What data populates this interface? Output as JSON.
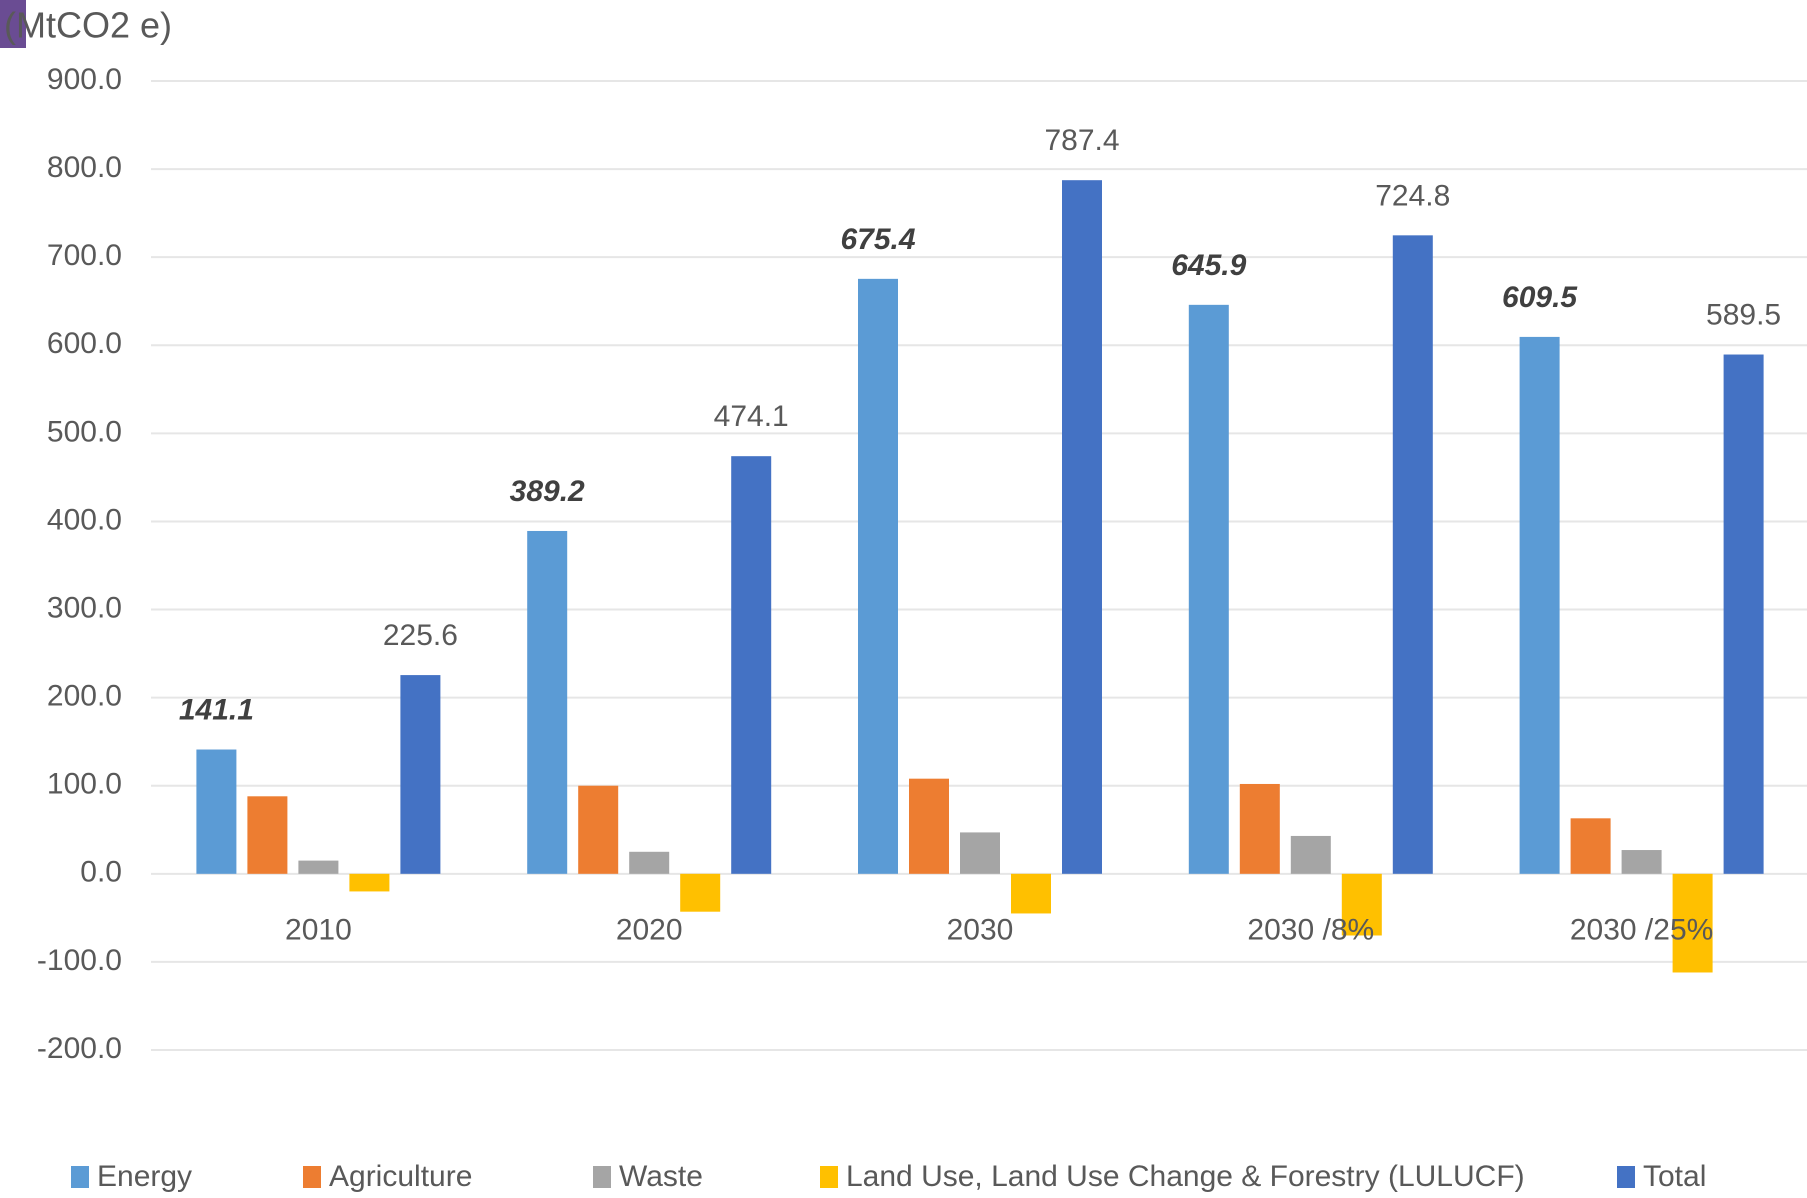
{
  "chart_data": {
    "type": "bar",
    "y_label": "(MtCO2 e)",
    "categories": [
      "2010",
      "2020",
      "2030",
      "2030 /8%",
      "2030 /25%"
    ],
    "series": [
      {
        "name": "Energy",
        "color": "#5b9bd5",
        "values": [
          141.1,
          389.2,
          675.4,
          645.9,
          609.5
        ],
        "data_labels": true,
        "label_style": "bold-italic"
      },
      {
        "name": "Agriculture",
        "color": "#ed7d31",
        "values": [
          88,
          100,
          108,
          102,
          63
        ]
      },
      {
        "name": "Waste",
        "color": "#a5a5a5",
        "values": [
          15,
          25,
          47,
          43,
          27
        ]
      },
      {
        "name": "Land Use, Land Use Change & Forestry (LULUCF)",
        "color": "#ffc000",
        "values": [
          -20,
          -43,
          -45,
          -70,
          -112
        ]
      },
      {
        "name": "Total",
        "color": "#4472c4",
        "values": [
          225.6,
          474.1,
          787.4,
          724.8,
          589.5
        ],
        "data_labels": true,
        "label_style": "normal"
      }
    ],
    "ylim": [
      -200,
      900
    ],
    "yticks": [
      {
        "value": -200,
        "label": "-200.0"
      },
      {
        "value": -100,
        "label": "-100.0"
      },
      {
        "value": 0,
        "label": "0.0"
      },
      {
        "value": 100,
        "label": "100.0"
      },
      {
        "value": 200,
        "label": "200.0"
      },
      {
        "value": 300,
        "label": "300.0"
      },
      {
        "value": 400,
        "label": "400.0"
      },
      {
        "value": 500,
        "label": "500.0"
      },
      {
        "value": 600,
        "label": "600.0"
      },
      {
        "value": 700,
        "label": "700.0"
      },
      {
        "value": 800,
        "label": "800.0"
      },
      {
        "value": 900,
        "label": "900.0"
      }
    ],
    "grid": true,
    "legend": "bottom"
  }
}
